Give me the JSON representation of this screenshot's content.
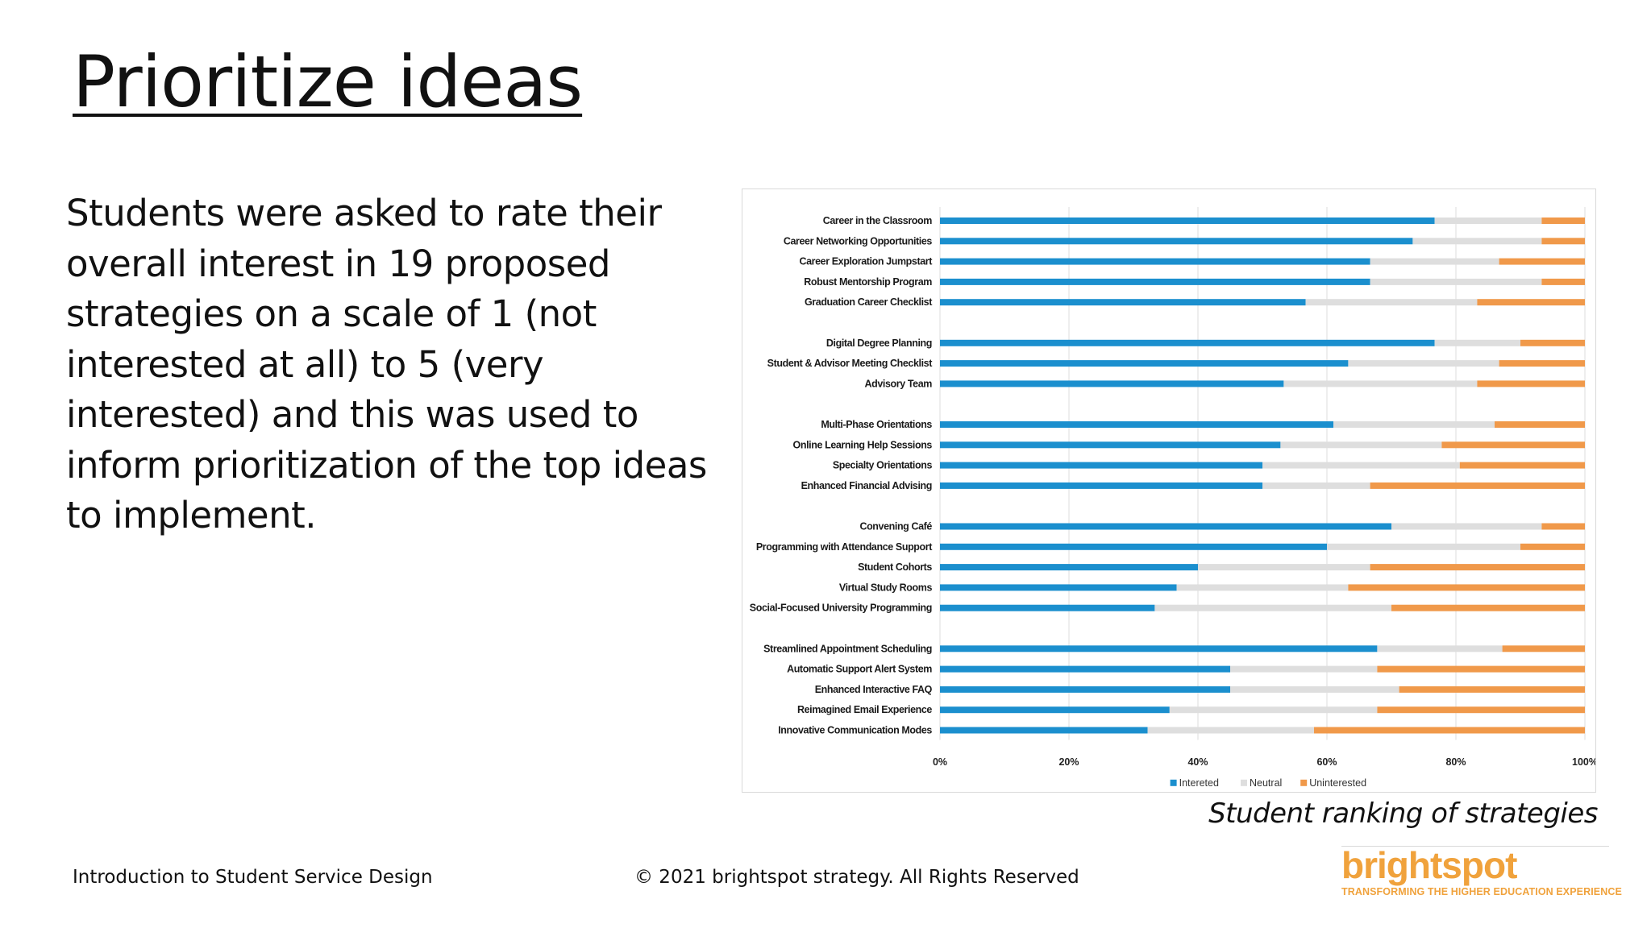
{
  "slide": {
    "title": "Prioritize ideas",
    "body": "Students were asked to rate their overall interest in 19 proposed strategies on a scale of 1 (not interested at all) to 5 (very interested) and this was used to inform prioritization of the top ideas to implement.",
    "caption": "Student ranking of strategies",
    "footer_left": "Introduction to Student Service Design",
    "footer_center": "© 2021 brightspot strategy. All Rights Reserved",
    "logo_word": "brightspot",
    "logo_tagline": "TRANSFORMING THE HIGHER EDUCATION EXPERIENCE",
    "logo_color": "#f0a23c"
  },
  "chart_data": {
    "type": "bar",
    "orientation": "horizontal",
    "stacked": true,
    "percent": true,
    "categories": [
      "Career in the Classroom",
      "Career Networking Opportunities",
      "Career Exploration Jumpstart",
      "Robust Mentorship Program",
      "Graduation Career Checklist",
      "",
      "Digital Degree Planning",
      "Student & Advisor Meeting Checklist",
      "Advisory Team",
      "",
      "Multi-Phase Orientations",
      "Online Learning Help Sessions",
      "Specialty Orientations",
      "Enhanced Financial Advising",
      "",
      "Convening Café",
      "Programming with Attendance Support",
      "Student Cohorts",
      "Virtual Study Rooms",
      "Social-Focused University Programming",
      "",
      "Streamlined Appointment Scheduling",
      "Automatic Support Alert System",
      "Enhanced Interactive FAQ",
      "Reimagined Email Experience",
      "Innovative Communication Modes"
    ],
    "series": [
      {
        "name": "Intereted",
        "color": "#1b8fce",
        "values": [
          76.7,
          73.3,
          66.7,
          66.7,
          56.7,
          null,
          76.7,
          63.3,
          53.3,
          null,
          61,
          52.8,
          50,
          50,
          null,
          70,
          60,
          40,
          36.7,
          33.3,
          null,
          67.8,
          45,
          45,
          35.6,
          32.2
        ]
      },
      {
        "name": "Neutral",
        "color": "#dedede",
        "values": [
          16.6,
          20,
          20,
          26.6,
          26.6,
          null,
          13.3,
          23.4,
          30,
          null,
          25,
          25,
          30.6,
          16.7,
          null,
          23.3,
          30,
          26.7,
          26.6,
          36.7,
          null,
          19.4,
          22.8,
          26.2,
          32.2,
          25.8
        ]
      },
      {
        "name": "Uninterested",
        "color": "#f0994a",
        "values": [
          6.7,
          6.7,
          13.3,
          6.7,
          16.7,
          null,
          10,
          13.3,
          16.7,
          null,
          14,
          22.2,
          19.4,
          33.3,
          null,
          6.7,
          10,
          33.3,
          36.7,
          30,
          null,
          12.8,
          32.2,
          28.8,
          32.2,
          42
        ]
      }
    ],
    "xlim": [
      0,
      100
    ],
    "xticks": [
      "0%",
      "20%",
      "40%",
      "60%",
      "80%",
      "100%"
    ],
    "grid": "vertical",
    "legend": "bottom",
    "title": "",
    "xlabel": "",
    "ylabel": ""
  }
}
